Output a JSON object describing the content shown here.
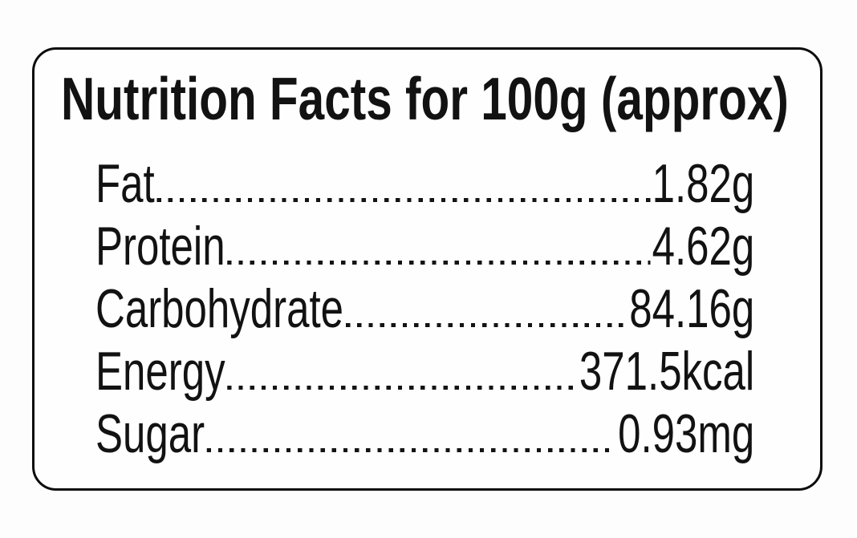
{
  "label": {
    "title": "Nutrition Facts for 100g (approx)",
    "rows": [
      {
        "name": "Fat",
        "value": "1.82g"
      },
      {
        "name": "Protein",
        "value": "4.62g"
      },
      {
        "name": "Carbohydrate",
        "value": "84.16g"
      },
      {
        "name": "Energy",
        "value": "371.5kcal"
      },
      {
        "name": "Sugar",
        "value": "0.93mg"
      }
    ],
    "colors": {
      "text": "#121212",
      "border": "#0c0c0c",
      "background": "#fdfdfd"
    }
  }
}
